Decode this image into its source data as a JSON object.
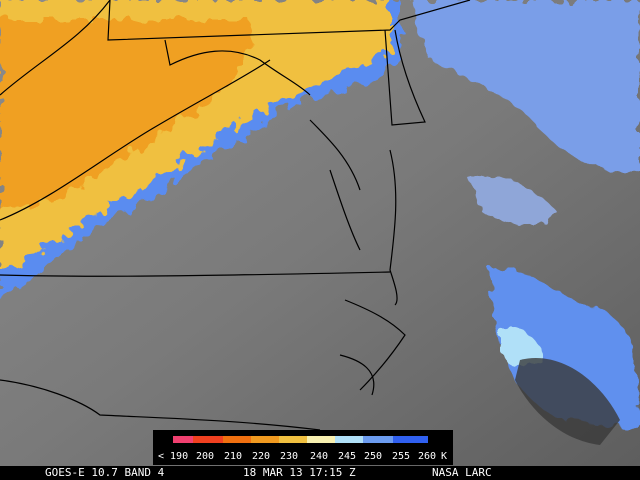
{
  "legend": {
    "labels": [
      "< 190",
      "200",
      "210",
      "220",
      "230",
      "240",
      "245",
      "250",
      "255",
      "260"
    ],
    "unit": "K"
  },
  "footer": {
    "satellite": "GOES-E 10.7 BAND 4",
    "timestamp": "18 MAR 13 17:15 Z",
    "source": "NASA LARC"
  }
}
